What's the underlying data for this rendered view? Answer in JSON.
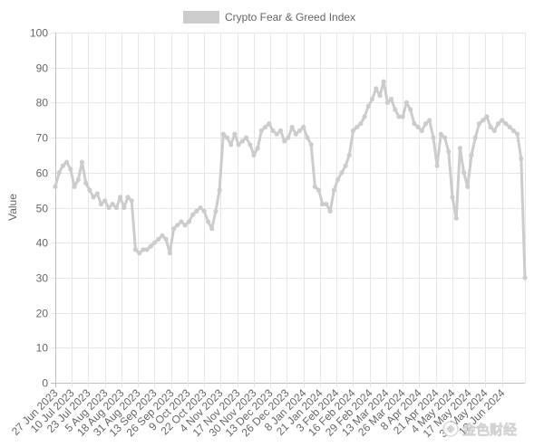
{
  "chart_data": {
    "type": "line",
    "ylabel": "Value",
    "ylim": [
      0,
      100
    ],
    "yticks": [
      0,
      10,
      20,
      30,
      40,
      50,
      60,
      70,
      80,
      90,
      100
    ],
    "xlim": [
      "2023-06-27",
      "2024-06-30"
    ],
    "xtick_dates": [
      "2023-06-27",
      "2023-07-10",
      "2023-07-23",
      "2023-08-05",
      "2023-08-18",
      "2023-08-31",
      "2023-09-13",
      "2023-09-26",
      "2023-10-09",
      "2023-10-22",
      "2023-11-04",
      "2023-11-17",
      "2023-11-30",
      "2023-12-13",
      "2023-12-26",
      "2024-01-08",
      "2024-01-21",
      "2024-02-03",
      "2024-02-16",
      "2024-02-29",
      "2024-03-13",
      "2024-03-26",
      "2024-04-08",
      "2024-04-21",
      "2024-05-04",
      "2024-05-17",
      "2024-05-30",
      "2024-06-12"
    ],
    "xtick_labels": [
      "27 Jun 2023",
      "10 Jul 2023",
      "23 Jul 2023",
      "5 Aug 2023",
      "18 Aug 2023",
      "31 Aug 2023",
      "13 Sep 2023",
      "26 Sep 2023",
      "9 Oct 2023",
      "22 Oct 2023",
      "4 Nov 2023",
      "17 Nov 2023",
      "30 Nov 2023",
      "13 Dec 2023",
      "26 Dec 2023",
      "8 Jan 2024",
      "21 Jan 2024",
      "3 Feb 2024",
      "16 Feb 2024",
      "29 Feb 2024",
      "13 Mar 2024",
      "26 Mar 2024",
      "8 Apr 2024",
      "21 Apr 2024",
      "4 May 2024",
      "17 May 2024",
      "30 May 2024",
      "12 Jun 2024"
    ],
    "grid": true,
    "legend": {
      "position": "top",
      "entries": [
        "Crypto Fear & Greed Index"
      ]
    },
    "series": [
      {
        "name": "Crypto Fear & Greed Index",
        "color": "#cccccc",
        "x": [
          "2023-06-27",
          "2023-06-30",
          "2023-07-03",
          "2023-07-06",
          "2023-07-09",
          "2023-07-12",
          "2023-07-15",
          "2023-07-18",
          "2023-07-21",
          "2023-07-24",
          "2023-07-27",
          "2023-07-30",
          "2023-08-02",
          "2023-08-05",
          "2023-08-08",
          "2023-08-11",
          "2023-08-14",
          "2023-08-17",
          "2023-08-20",
          "2023-08-23",
          "2023-08-26",
          "2023-08-29",
          "2023-09-01",
          "2023-09-04",
          "2023-09-07",
          "2023-09-10",
          "2023-09-13",
          "2023-09-16",
          "2023-09-19",
          "2023-09-22",
          "2023-09-25",
          "2023-09-28",
          "2023-10-01",
          "2023-10-04",
          "2023-10-07",
          "2023-10-10",
          "2023-10-13",
          "2023-10-16",
          "2023-10-19",
          "2023-10-22",
          "2023-10-25",
          "2023-10-28",
          "2023-10-31",
          "2023-11-03",
          "2023-11-06",
          "2023-11-09",
          "2023-11-12",
          "2023-11-15",
          "2023-11-18",
          "2023-11-21",
          "2023-11-24",
          "2023-11-27",
          "2023-11-30",
          "2023-12-03",
          "2023-12-06",
          "2023-12-09",
          "2023-12-12",
          "2023-12-15",
          "2023-12-18",
          "2023-12-21",
          "2023-12-24",
          "2023-12-27",
          "2023-12-30",
          "2024-01-02",
          "2024-01-05",
          "2024-01-08",
          "2024-01-11",
          "2024-01-14",
          "2024-01-17",
          "2024-01-20",
          "2024-01-23",
          "2024-01-26",
          "2024-01-29",
          "2024-02-01",
          "2024-02-04",
          "2024-02-07",
          "2024-02-10",
          "2024-02-13",
          "2024-02-16",
          "2024-02-19",
          "2024-02-22",
          "2024-02-25",
          "2024-02-28",
          "2024-03-02",
          "2024-03-05",
          "2024-03-08",
          "2024-03-11",
          "2024-03-14",
          "2024-03-17",
          "2024-03-20",
          "2024-03-23",
          "2024-03-26",
          "2024-03-29",
          "2024-04-01",
          "2024-04-04",
          "2024-04-07",
          "2024-04-10",
          "2024-04-13",
          "2024-04-16",
          "2024-04-19",
          "2024-04-22",
          "2024-04-25",
          "2024-04-28",
          "2024-05-01",
          "2024-05-04",
          "2024-05-07",
          "2024-05-10",
          "2024-05-13",
          "2024-05-16",
          "2024-05-19",
          "2024-05-22",
          "2024-05-25",
          "2024-05-28",
          "2024-05-31",
          "2024-06-03",
          "2024-06-06",
          "2024-06-09",
          "2024-06-12",
          "2024-06-15",
          "2024-06-18",
          "2024-06-21",
          "2024-06-24",
          "2024-06-27",
          "2024-06-30"
        ],
        "values": [
          56,
          60,
          62,
          63,
          61,
          56,
          58,
          63,
          57,
          55,
          53,
          54,
          51,
          52,
          50,
          51,
          50,
          53,
          50,
          53,
          52,
          38,
          37,
          38,
          38,
          39,
          40,
          41,
          42,
          41,
          37,
          44,
          45,
          46,
          45,
          46,
          48,
          49,
          50,
          49,
          46,
          44,
          49,
          55,
          71,
          70,
          68,
          71,
          68,
          69,
          70,
          68,
          65,
          67,
          72,
          73,
          74,
          72,
          71,
          72,
          69,
          70,
          73,
          71,
          72,
          73,
          70,
          68,
          56,
          55,
          51,
          51,
          49,
          55,
          58,
          60,
          62,
          65,
          72,
          73,
          74,
          76,
          79,
          81,
          84,
          82,
          86,
          80,
          81,
          78,
          76,
          76,
          80,
          78,
          74,
          73,
          72,
          74,
          75,
          70,
          62,
          71,
          70,
          66,
          53,
          47,
          67,
          60,
          56,
          65,
          70,
          74,
          75,
          76,
          73,
          72,
          74,
          75,
          74,
          73,
          72,
          71,
          64,
          30
        ]
      }
    ]
  },
  "watermark": {
    "text": "金色财经"
  }
}
